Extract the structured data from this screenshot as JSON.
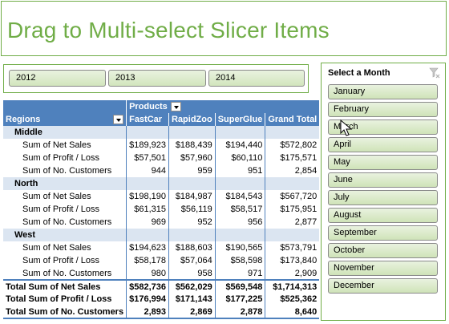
{
  "title": "Drag to Multi-select Slicer Items",
  "year_slicer": {
    "items": [
      "2012",
      "2013",
      "2014"
    ]
  },
  "month_slicer": {
    "header": "Select a Month",
    "items": [
      "January",
      "February",
      "March",
      "April",
      "May",
      "June",
      "July",
      "August",
      "September",
      "October",
      "November",
      "December"
    ]
  },
  "pivot": {
    "header_row1": {
      "label": "Products"
    },
    "header_row2": {
      "regions": "Regions",
      "cols": [
        "FastCar",
        "RapidZoo",
        "SuperGlue",
        "Grand Total"
      ]
    },
    "groups": [
      {
        "name": "Middle",
        "rows": [
          {
            "label": "Sum of Net Sales",
            "values": [
              "$189,923",
              "$188,439",
              "$194,440",
              "$572,802"
            ]
          },
          {
            "label": "Sum of Profit / Loss",
            "values": [
              "$57,501",
              "$57,960",
              "$60,110",
              "$175,571"
            ]
          },
          {
            "label": "Sum of No. Customers",
            "values": [
              "944",
              "959",
              "951",
              "2,854"
            ]
          }
        ]
      },
      {
        "name": "North",
        "rows": [
          {
            "label": "Sum of Net Sales",
            "values": [
              "$198,190",
              "$184,987",
              "$184,543",
              "$567,720"
            ]
          },
          {
            "label": "Sum of Profit / Loss",
            "values": [
              "$61,315",
              "$56,119",
              "$58,517",
              "$175,951"
            ]
          },
          {
            "label": "Sum of No. Customers",
            "values": [
              "969",
              "952",
              "956",
              "2,877"
            ]
          }
        ]
      },
      {
        "name": "West",
        "rows": [
          {
            "label": "Sum of Net Sales",
            "values": [
              "$194,623",
              "$188,603",
              "$190,565",
              "$573,791"
            ]
          },
          {
            "label": "Sum of Profit / Loss",
            "values": [
              "$58,178",
              "$57,064",
              "$58,598",
              "$173,840"
            ]
          },
          {
            "label": "Sum of No. Customers",
            "values": [
              "980",
              "958",
              "971",
              "2,909"
            ]
          }
        ]
      }
    ],
    "totals": [
      {
        "label": "Total Sum of Net Sales",
        "values": [
          "$582,736",
          "$562,029",
          "$569,548",
          "$1,714,313"
        ]
      },
      {
        "label": "Total Sum of Profit / Loss",
        "values": [
          "$176,994",
          "$171,143",
          "$177,225",
          "$525,362"
        ]
      },
      {
        "label": "Total Sum of No. Customers",
        "values": [
          "2,893",
          "2,869",
          "2,878",
          "8,640"
        ]
      }
    ]
  },
  "colors": {
    "accent_green": "#70ad47",
    "pivot_blue": "#4f81bd",
    "pivot_light": "#dbe5f1"
  }
}
